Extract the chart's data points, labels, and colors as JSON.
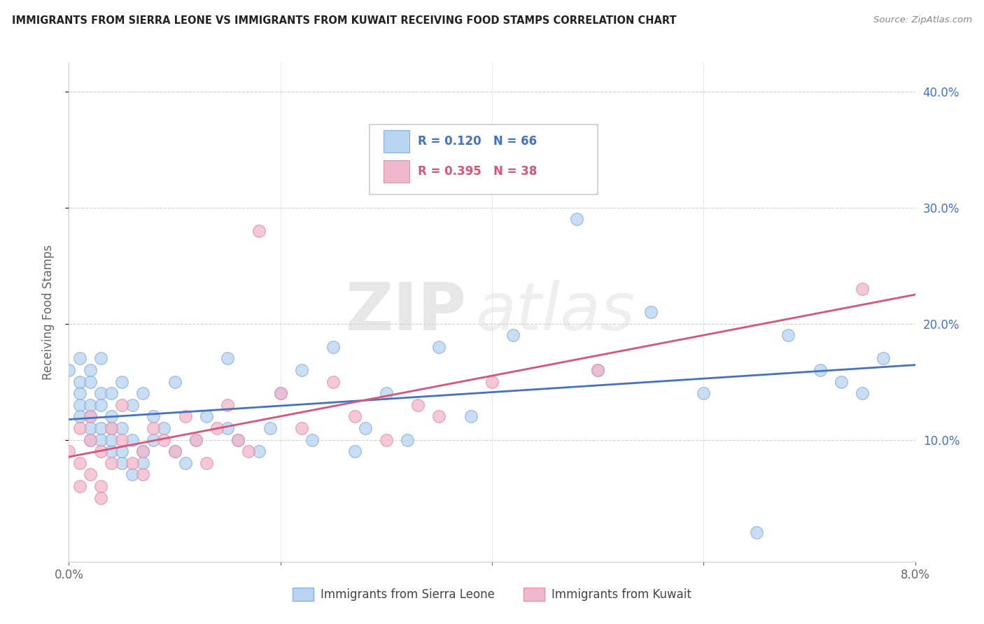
{
  "title": "IMMIGRANTS FROM SIERRA LEONE VS IMMIGRANTS FROM KUWAIT RECEIVING FOOD STAMPS CORRELATION CHART",
  "source": "Source: ZipAtlas.com",
  "ylabel": "Receiving Food Stamps",
  "xlim": [
    0.0,
    0.08
  ],
  "ylim": [
    -0.005,
    0.425
  ],
  "xticks": [
    0.0,
    0.02,
    0.04,
    0.06,
    0.08
  ],
  "xtick_labels": [
    "0.0%",
    "",
    "",
    "",
    "8.0%"
  ],
  "yticks": [
    0.1,
    0.2,
    0.3,
    0.4
  ],
  "ytick_labels_right": [
    "10.0%",
    "20.0%",
    "30.0%",
    "40.0%"
  ],
  "sierra_leone_R": 0.12,
  "sierra_leone_N": 66,
  "kuwait_R": 0.395,
  "kuwait_N": 38,
  "sierra_leone_color": "#b8d4f0",
  "kuwait_color": "#f0b8cc",
  "sierra_leone_edge": "#8ab0e0",
  "kuwait_edge": "#e890aa",
  "sierra_leone_line_color": "#4472c4",
  "kuwait_line_color": "#d9547a",
  "watermark_zip": "ZIP",
  "watermark_atlas": "atlas",
  "background_color": "#ffffff",
  "grid_color": "#cccccc",
  "title_color": "#222222",
  "source_color": "#888888",
  "axis_label_color": "#666666",
  "tick_color": "#4472c4",
  "sierra_leone_x": [
    0.0,
    0.001,
    0.001,
    0.001,
    0.001,
    0.001,
    0.002,
    0.002,
    0.002,
    0.002,
    0.002,
    0.002,
    0.003,
    0.003,
    0.003,
    0.003,
    0.003,
    0.004,
    0.004,
    0.004,
    0.004,
    0.004,
    0.005,
    0.005,
    0.005,
    0.005,
    0.006,
    0.006,
    0.006,
    0.007,
    0.007,
    0.007,
    0.008,
    0.008,
    0.009,
    0.01,
    0.01,
    0.011,
    0.012,
    0.013,
    0.015,
    0.015,
    0.016,
    0.018,
    0.019,
    0.02,
    0.022,
    0.023,
    0.025,
    0.027,
    0.028,
    0.03,
    0.032,
    0.035,
    0.038,
    0.042,
    0.048,
    0.05,
    0.055,
    0.06,
    0.065,
    0.068,
    0.071,
    0.073,
    0.075,
    0.077
  ],
  "sierra_leone_y": [
    0.16,
    0.14,
    0.15,
    0.17,
    0.13,
    0.12,
    0.12,
    0.13,
    0.16,
    0.1,
    0.11,
    0.15,
    0.1,
    0.11,
    0.13,
    0.17,
    0.14,
    0.09,
    0.1,
    0.12,
    0.14,
    0.11,
    0.08,
    0.09,
    0.11,
    0.15,
    0.07,
    0.1,
    0.13,
    0.08,
    0.09,
    0.14,
    0.1,
    0.12,
    0.11,
    0.09,
    0.15,
    0.08,
    0.1,
    0.12,
    0.11,
    0.17,
    0.1,
    0.09,
    0.11,
    0.14,
    0.16,
    0.1,
    0.18,
    0.09,
    0.11,
    0.14,
    0.1,
    0.18,
    0.12,
    0.19,
    0.29,
    0.16,
    0.21,
    0.14,
    0.02,
    0.19,
    0.16,
    0.15,
    0.14,
    0.17
  ],
  "kuwait_x": [
    0.0,
    0.001,
    0.001,
    0.001,
    0.002,
    0.002,
    0.002,
    0.003,
    0.003,
    0.003,
    0.004,
    0.004,
    0.005,
    0.005,
    0.006,
    0.007,
    0.007,
    0.008,
    0.009,
    0.01,
    0.011,
    0.012,
    0.013,
    0.014,
    0.015,
    0.016,
    0.017,
    0.018,
    0.02,
    0.022,
    0.025,
    0.027,
    0.03,
    0.033,
    0.035,
    0.04,
    0.05,
    0.075
  ],
  "kuwait_y": [
    0.09,
    0.08,
    0.11,
    0.06,
    0.07,
    0.1,
    0.12,
    0.06,
    0.09,
    0.05,
    0.08,
    0.11,
    0.1,
    0.13,
    0.08,
    0.07,
    0.09,
    0.11,
    0.1,
    0.09,
    0.12,
    0.1,
    0.08,
    0.11,
    0.13,
    0.1,
    0.09,
    0.28,
    0.14,
    0.11,
    0.15,
    0.12,
    0.1,
    0.13,
    0.12,
    0.15,
    0.16,
    0.23
  ]
}
